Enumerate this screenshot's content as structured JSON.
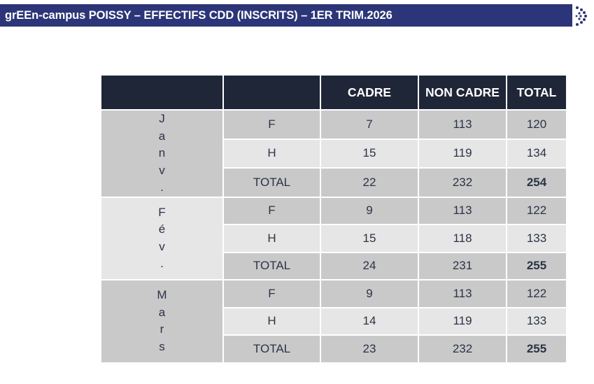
{
  "header": {
    "title": "grEEn-campus POISSY – EFFECTIFS CDD (INSCRITS) – 1ER TRIM.2026"
  },
  "table": {
    "columns": [
      "",
      "",
      "CADRE",
      "NON CADRE",
      "TOTAL"
    ],
    "groups": [
      {
        "month": "Janv.",
        "rows": [
          {
            "label": "F",
            "cadre": "7",
            "non_cadre": "113",
            "total": "120"
          },
          {
            "label": "H",
            "cadre": "15",
            "non_cadre": "119",
            "total": "134"
          },
          {
            "label": "TOTAL",
            "cadre": "22",
            "non_cadre": "232",
            "total": "254"
          }
        ]
      },
      {
        "month": "Fév.",
        "rows": [
          {
            "label": "F",
            "cadre": "9",
            "non_cadre": "113",
            "total": "122"
          },
          {
            "label": "H",
            "cadre": "15",
            "non_cadre": "118",
            "total": "133"
          },
          {
            "label": "TOTAL",
            "cadre": "24",
            "non_cadre": "231",
            "total": "255"
          }
        ]
      },
      {
        "month": "Mars",
        "rows": [
          {
            "label": "F",
            "cadre": "9",
            "non_cadre": "113",
            "total": "122"
          },
          {
            "label": "H",
            "cadre": "14",
            "non_cadre": "119",
            "total": "133"
          },
          {
            "label": "TOTAL",
            "cadre": "23",
            "non_cadre": "232",
            "total": "255"
          }
        ]
      }
    ]
  },
  "colors": {
    "title_bar": "#2b3577",
    "header_row": "#1f2638",
    "cell_dark": "#c9c9c9",
    "cell_light": "#e6e6e6"
  }
}
